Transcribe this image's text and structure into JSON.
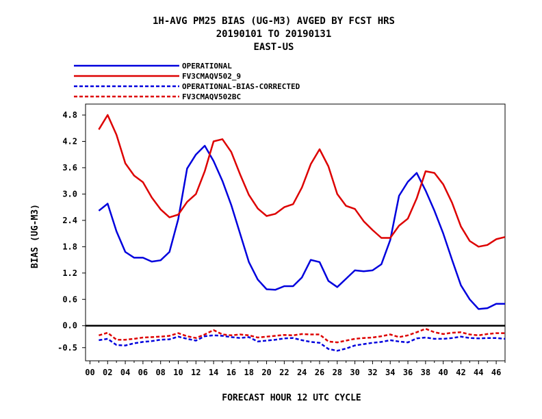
{
  "chart_data": {
    "type": "line",
    "title": [
      "1H-AVG PM25 BIAS (UG-M3)  AVGED BY FCST HRS",
      "20190101 TO 20190131",
      "EAST-US"
    ],
    "xlabel": "FORECAST HOUR  12 UTC CYCLE",
    "ylabel": "BIAS (UG-M3)",
    "xlim": [
      -0.5,
      47
    ],
    "ylim": [
      -0.8,
      5.05
    ],
    "x_ticks": [
      "00",
      "02",
      "04",
      "06",
      "08",
      "10",
      "12",
      "14",
      "16",
      "18",
      "20",
      "22",
      "24",
      "26",
      "28",
      "30",
      "32",
      "34",
      "36",
      "38",
      "40",
      "42",
      "44",
      "46"
    ],
    "y_ticks": [
      "4.8",
      "4.2",
      "3.6",
      "3.0",
      "2.4",
      "1.8",
      "1.2",
      "0.6",
      "0.0",
      "-0.5"
    ],
    "legend_position": "top-left",
    "x": [
      1,
      2,
      3,
      4,
      5,
      6,
      7,
      8,
      9,
      10,
      11,
      12,
      13,
      14,
      15,
      16,
      17,
      18,
      19,
      20,
      21,
      22,
      23,
      24,
      25,
      26,
      27,
      28,
      29,
      30,
      31,
      32,
      33,
      34,
      35,
      36,
      37,
      38,
      39,
      40,
      41,
      42,
      43,
      44,
      45,
      46,
      47
    ],
    "series": [
      {
        "name": "OPERATIONAL",
        "color": "#0000dd",
        "dash": "solid",
        "values": [
          2.62,
          2.78,
          2.15,
          1.68,
          1.55,
          1.55,
          1.46,
          1.49,
          1.68,
          2.43,
          3.58,
          3.9,
          4.1,
          3.75,
          3.3,
          2.75,
          2.1,
          1.45,
          1.05,
          0.83,
          0.82,
          0.9,
          0.9,
          1.1,
          1.5,
          1.45,
          1.02,
          0.88,
          1.07,
          1.26,
          1.24,
          1.26,
          1.4,
          1.95,
          2.96,
          3.28,
          3.48,
          3.08,
          2.62,
          2.1,
          1.5,
          0.92,
          0.6,
          0.38,
          0.4,
          0.5,
          0.5
        ]
      },
      {
        "name": "FV3CMAQV502_9",
        "color": "#dd0000",
        "dash": "solid",
        "values": [
          4.47,
          4.8,
          4.35,
          3.7,
          3.42,
          3.27,
          2.92,
          2.65,
          2.47,
          2.53,
          2.82,
          3.0,
          3.52,
          4.2,
          4.25,
          3.96,
          3.45,
          2.98,
          2.67,
          2.5,
          2.55,
          2.7,
          2.77,
          3.15,
          3.68,
          4.02,
          3.63,
          3.0,
          2.73,
          2.66,
          2.38,
          2.18,
          2.0,
          2.0,
          2.28,
          2.44,
          2.9,
          3.52,
          3.48,
          3.22,
          2.8,
          2.26,
          1.93,
          1.8,
          1.84,
          1.97,
          2.02
        ]
      },
      {
        "name": "OPERATIONAL-BIAS-CORRECTED",
        "color": "#0000dd",
        "dash": "dashed",
        "values": [
          -0.33,
          -0.3,
          -0.44,
          -0.45,
          -0.4,
          -0.37,
          -0.35,
          -0.32,
          -0.31,
          -0.25,
          -0.3,
          -0.34,
          -0.24,
          -0.22,
          -0.23,
          -0.26,
          -0.28,
          -0.26,
          -0.36,
          -0.34,
          -0.32,
          -0.29,
          -0.28,
          -0.33,
          -0.37,
          -0.39,
          -0.53,
          -0.57,
          -0.52,
          -0.45,
          -0.42,
          -0.39,
          -0.37,
          -0.33,
          -0.36,
          -0.38,
          -0.29,
          -0.27,
          -0.3,
          -0.3,
          -0.28,
          -0.25,
          -0.28,
          -0.29,
          -0.28,
          -0.28,
          -0.3
        ]
      },
      {
        "name": "FV3CMAQV502BC",
        "color": "#dd0000",
        "dash": "dashed",
        "values": [
          -0.22,
          -0.16,
          -0.32,
          -0.32,
          -0.3,
          -0.27,
          -0.26,
          -0.25,
          -0.23,
          -0.17,
          -0.24,
          -0.28,
          -0.2,
          -0.1,
          -0.2,
          -0.22,
          -0.2,
          -0.22,
          -0.27,
          -0.25,
          -0.23,
          -0.21,
          -0.22,
          -0.19,
          -0.2,
          -0.2,
          -0.36,
          -0.38,
          -0.34,
          -0.3,
          -0.28,
          -0.27,
          -0.24,
          -0.2,
          -0.26,
          -0.22,
          -0.15,
          -0.07,
          -0.15,
          -0.19,
          -0.16,
          -0.15,
          -0.2,
          -0.22,
          -0.19,
          -0.17,
          -0.17
        ]
      }
    ]
  }
}
